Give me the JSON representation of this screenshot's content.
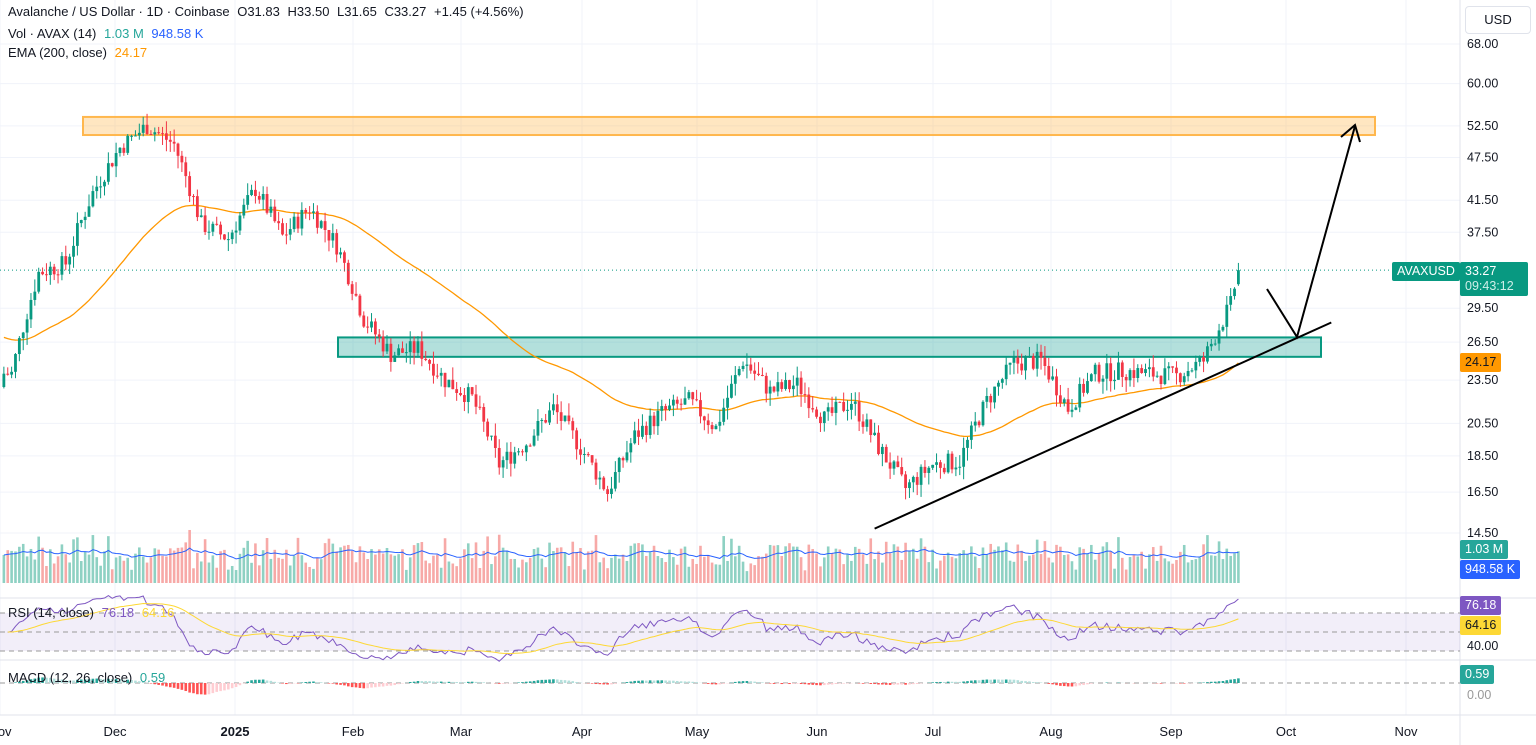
{
  "header": {
    "symbol_title": "Avalanche / US Dollar · 1D · Coinbase",
    "open": "O31.83",
    "high": "H33.50",
    "low": "L31.65",
    "close": "C33.27",
    "change": "+1.45 (+4.56%)",
    "vol_label": "Vol · AVAX (14)",
    "vol_value": "1.03 M",
    "vol_ma": "948.58 K",
    "ema_label": "EMA (200, close)",
    "ema_value": "24.17",
    "currency": "USD"
  },
  "price_tags": {
    "symbol": "AVAXUSD",
    "last": "33.27",
    "countdown": "09:43:12",
    "ema": "24.17",
    "vol": "1.03 M",
    "vol_ma": "948.58 K",
    "rsi": "76.18",
    "rsi_ma": "64.16",
    "macd": "0.59"
  },
  "rsi": {
    "label": "RSI (14, close)",
    "value": "76.18",
    "ma": "64.16",
    "axis": "40.00"
  },
  "macd": {
    "label": "MACD (12, 26, close)",
    "value": "0.59",
    "axis": "0.00"
  },
  "colors": {
    "up": "#089981",
    "down": "#f23645",
    "ema": "#ff9800",
    "volma": "#2962ff",
    "rsi": "#7e57c2",
    "rsima": "#fdd835",
    "resist": "#ffb74d",
    "support": "#26a69a"
  },
  "chart_data": {
    "type": "candlestick",
    "title": "Avalanche / US Dollar · 1D · Coinbase",
    "scale": "log",
    "ylim": [
      14.5,
      68
    ],
    "y_ticks": [
      "68.00",
      "60.00",
      "52.50",
      "47.50",
      "41.50",
      "37.50",
      "29.50",
      "26.50",
      "23.50",
      "20.50",
      "18.50",
      "16.50",
      "14.50"
    ],
    "x_ticks": [
      "Nov",
      "Dec",
      "2025",
      "Feb",
      "Mar",
      "Apr",
      "May",
      "Jun",
      "Jul",
      "Aug",
      "Sep",
      "Oct",
      "Nov"
    ],
    "weekly_close_dates": [
      "2024-11-03",
      "2024-11-10",
      "2024-11-17",
      "2024-11-24",
      "2024-12-01",
      "2024-12-08",
      "2024-12-15",
      "2024-12-22",
      "2024-12-29",
      "2025-01-05",
      "2025-01-12",
      "2025-01-19",
      "2025-01-26",
      "2025-02-02",
      "2025-02-09",
      "2025-02-16",
      "2025-02-23",
      "2025-03-02",
      "2025-03-09",
      "2025-03-16",
      "2025-03-23",
      "2025-03-30",
      "2025-04-06",
      "2025-04-13",
      "2025-04-20",
      "2025-04-27",
      "2025-05-04",
      "2025-05-11",
      "2025-05-18",
      "2025-05-25",
      "2025-06-01",
      "2025-06-08",
      "2025-06-15",
      "2025-06-22",
      "2025-06-29",
      "2025-07-06",
      "2025-07-13",
      "2025-07-20",
      "2025-07-27",
      "2025-08-03",
      "2025-08-10",
      "2025-08-17",
      "2025-08-24",
      "2025-08-31",
      "2025-09-07",
      "2025-09-14",
      "2025-09-16"
    ],
    "weekly_close": [
      24,
      33,
      34,
      42.5,
      49,
      52.5,
      49.5,
      38.5,
      36.8,
      43,
      37,
      40.5,
      36,
      28.5,
      25.5,
      26,
      23.5,
      22.2,
      18,
      19.3,
      21.5,
      19,
      16.5,
      19.7,
      21.2,
      22,
      20.2,
      25,
      22.7,
      23.2,
      20.8,
      22,
      19,
      16.7,
      18,
      18.2,
      22,
      24.8,
      25,
      21.5,
      24,
      24.2,
      24,
      23.8,
      25,
      29.8,
      33.27
    ],
    "annotations": {
      "resistance_zone": [
        51,
        54
      ],
      "support_zone": [
        25.3,
        26.9
      ],
      "rising_trendline": [
        [
          "2025-06-14",
          14.7
        ],
        [
          "2025-10-10",
          28.2
        ]
      ],
      "projection_target": 52.5
    }
  }
}
